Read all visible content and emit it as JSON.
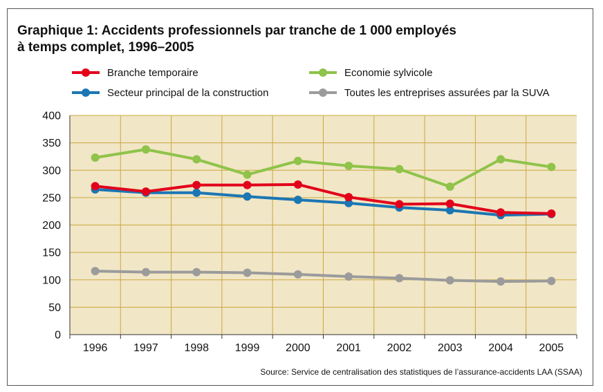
{
  "title_lines": [
    "Graphique 1: Accidents professionnels par tranche de 1 000 employés",
    "à temps complet, 1996–2005"
  ],
  "source": "Source: Service de centralisation des statistiques de l’assurance-accidents LAA (SSAA)",
  "colors": {
    "plot_background": "#f1e6c6",
    "grid": "#c9a93e",
    "axis": "#333333"
  },
  "chart_data": {
    "type": "line",
    "title": "Graphique 1: Accidents professionnels par tranche de 1 000 employés à temps complet, 1996–2005",
    "x": [
      "1996",
      "1997",
      "1998",
      "1999",
      "2000",
      "2001",
      "2002",
      "2003",
      "2004",
      "2005"
    ],
    "ylim": [
      0,
      400
    ],
    "yticks": [
      "0",
      "50",
      "100",
      "150",
      "200",
      "250",
      "300",
      "350",
      "400"
    ],
    "grid": true,
    "legend_position": "top",
    "series": [
      {
        "name": "Branche temporaire",
        "color": "#e2001a",
        "values": [
          271,
          261,
          273,
          273,
          274,
          251,
          238,
          239,
          223,
          221
        ]
      },
      {
        "name": "Economie sylvicole",
        "color": "#8fc34a",
        "values": [
          323,
          338,
          320,
          292,
          317,
          308,
          302,
          270,
          320,
          306
        ]
      },
      {
        "name": "Secteur principal de la construction",
        "color": "#1b76b4",
        "values": [
          265,
          259,
          259,
          252,
          246,
          240,
          232,
          227,
          218,
          220
        ]
      },
      {
        "name": "Toutes les entreprises assurées par la SUVA",
        "color": "#9b9b9b",
        "values": [
          116,
          114,
          114,
          113,
          110,
          106,
          103,
          99,
          97,
          98
        ]
      }
    ]
  }
}
